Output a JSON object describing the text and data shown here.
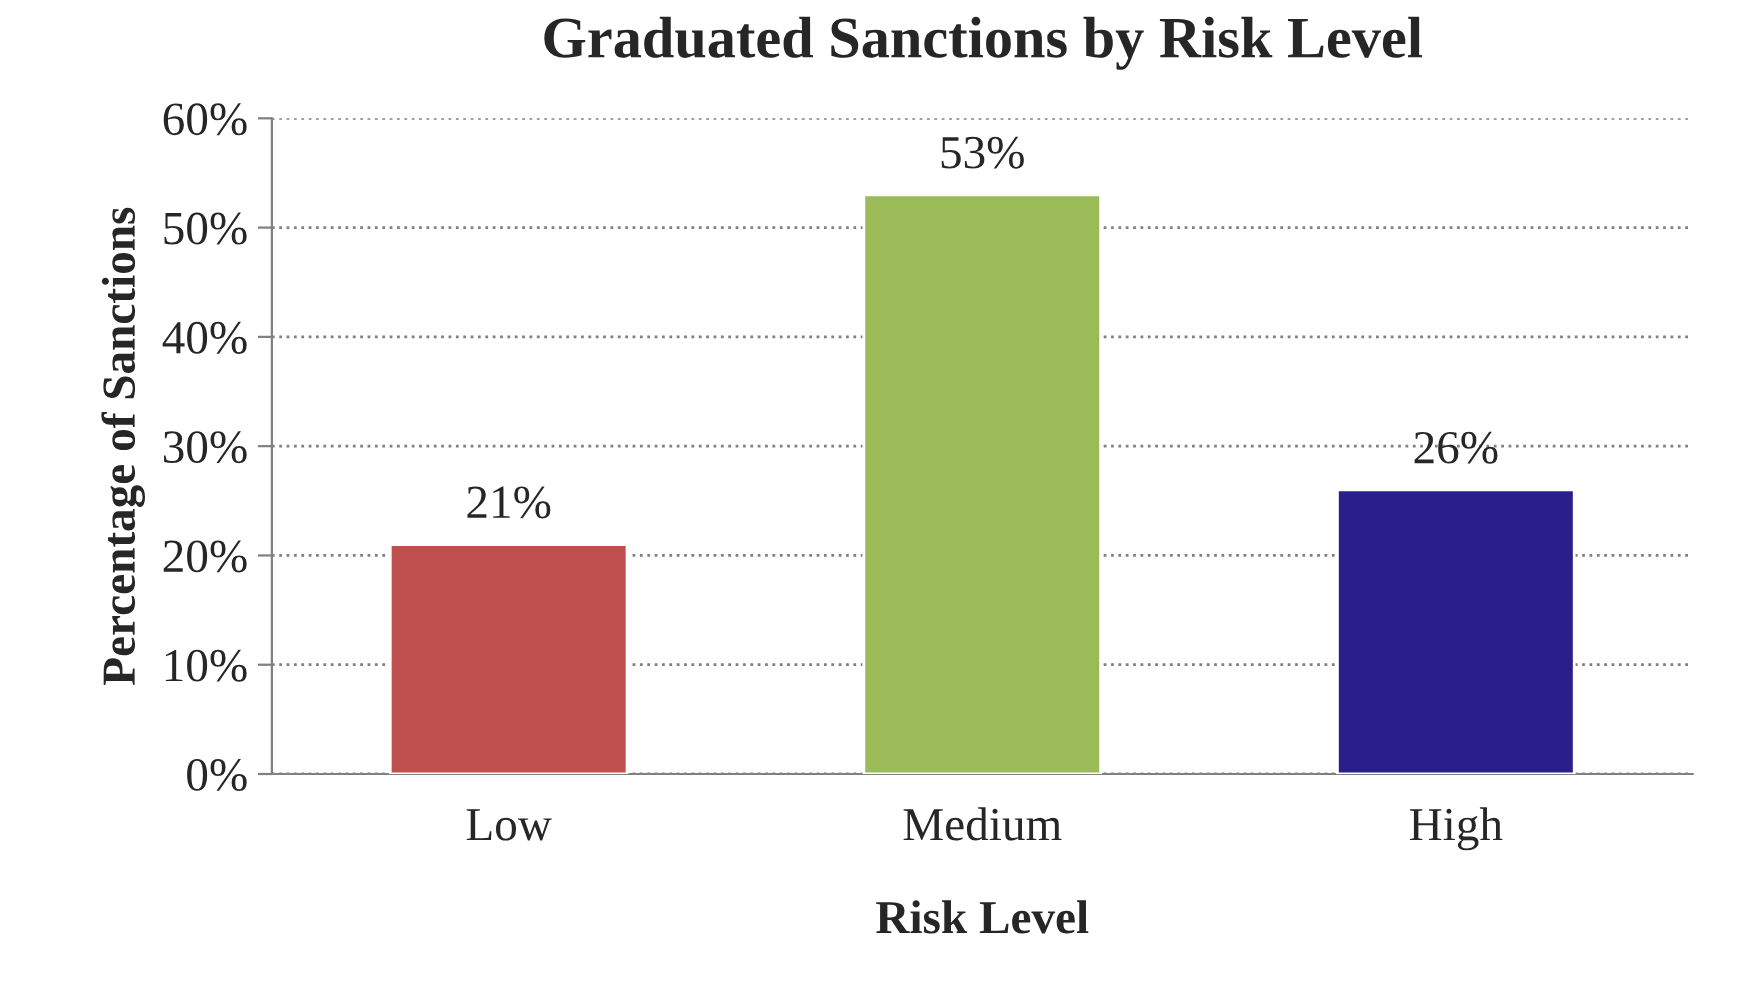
{
  "chart_data": {
    "type": "bar",
    "title": "Graduated Sanctions by Risk Level",
    "xlabel": "Risk Level",
    "ylabel": "Percentage of Sanctions",
    "categories": [
      "Low",
      "Medium",
      "High"
    ],
    "values": [
      21,
      53,
      26
    ],
    "colors": [
      "#c0504d",
      "#9bbb59",
      "#2a1f8a"
    ],
    "value_labels": [
      "21%",
      "53%",
      "26%"
    ],
    "ylim": [
      0,
      60
    ],
    "yticks": [
      {
        "value": 0,
        "label": "0%"
      },
      {
        "value": 10,
        "label": "10%"
      },
      {
        "value": 20,
        "label": "20%"
      },
      {
        "value": 30,
        "label": "30%"
      },
      {
        "value": 40,
        "label": "40%"
      },
      {
        "value": 50,
        "label": "50%"
      },
      {
        "value": 60,
        "label": "60%"
      }
    ],
    "grid": "y",
    "legend": false
  }
}
